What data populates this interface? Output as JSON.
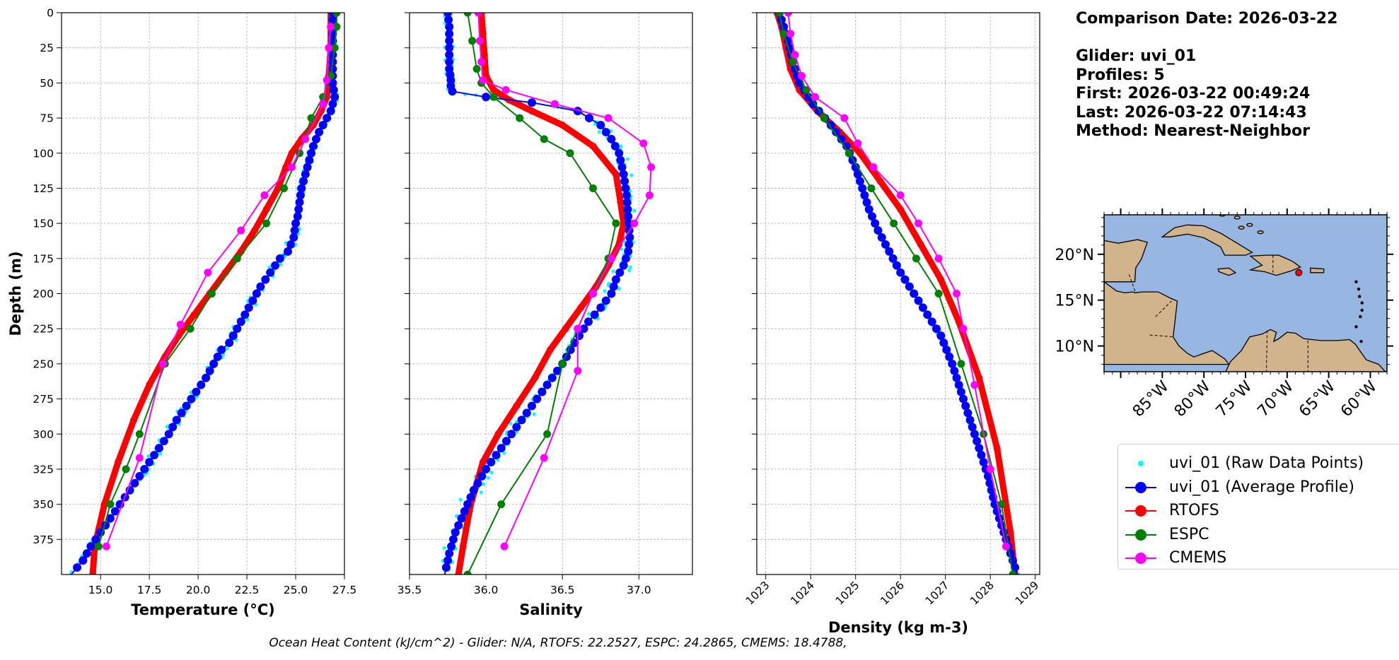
{
  "info": {
    "comparison_date": "Comparison Date: 2026-03-22",
    "glider": "Glider: uvi_01",
    "profiles": "Profiles: 5",
    "first": "First: 2026-03-22 00:49:24",
    "last": "Last: 2026-03-22 07:14:43",
    "method": "Method: Nearest-Neighbor"
  },
  "legend": [
    {
      "label": "uvi_01 (Raw Data Points)",
      "color": "#00ffff",
      "style": "points"
    },
    {
      "label": "uvi_01 (Average Profile)",
      "color": "#0000ff",
      "style": "line-marker"
    },
    {
      "label": "RTOFS",
      "color": "#ff0000",
      "style": "line-marker"
    },
    {
      "label": "ESPC",
      "color": "#008000",
      "style": "line-marker"
    },
    {
      "label": "CMEMS",
      "color": "#ff00ff",
      "style": "line-marker"
    }
  ],
  "footer": "Ocean Heat Content (kJ/cm^2) - Glider: N/A,  RTOFS: 22.2527,  ESPC: 24.2865,  CMEMS: 18.4788,",
  "map": {
    "lat_ticks": [
      "20°N",
      "15°N",
      "10°N"
    ],
    "lon_ticks": [
      "85°W",
      "80°W",
      "75°W",
      "70°W",
      "65°W",
      "60°W"
    ],
    "ocean_color": "#97b6e1",
    "land_color": "#d2b48c",
    "marker": {
      "lon": -68.6,
      "lat": 18.0,
      "color": "#ff0000"
    }
  },
  "chart_data": [
    {
      "type": "line",
      "xlabel": "Temperature (°C)",
      "ylabel": "Depth (m)",
      "xlim": [
        13.0,
        27.5
      ],
      "ylim": [
        400,
        0
      ],
      "xticks": [
        15.0,
        17.5,
        20.0,
        22.5,
        25.0,
        27.5
      ],
      "xtick_labels": [
        "15.0",
        "17.5",
        "20.0",
        "22.5",
        "25.0",
        "27.5"
      ],
      "yticks": [
        0,
        25,
        50,
        75,
        100,
        125,
        150,
        175,
        200,
        225,
        250,
        275,
        300,
        325,
        350,
        375
      ],
      "grid": true,
      "series": [
        {
          "name": "uvi_01 (Average Profile)",
          "color": "#0000ff",
          "x": [
            26.9,
            26.9,
            26.9,
            26.9,
            26.9,
            26.9,
            26.9,
            27.0,
            26.9,
            26.8,
            26.6,
            26.2,
            25.9,
            25.7,
            25.5,
            25.3,
            25.2,
            25.1,
            25.0,
            24.9,
            24.6,
            24.2,
            23.7,
            23.2,
            22.8,
            22.4,
            22.0,
            21.6,
            21.2,
            20.8,
            20.4,
            19.9,
            19.4,
            18.9,
            18.5,
            18.0,
            17.5,
            17.0,
            16.5,
            16.0,
            15.5,
            15.0,
            14.5,
            14.1,
            13.8,
            13.5
          ],
          "y": [
            0,
            5,
            10,
            20,
            30,
            40,
            50,
            60,
            65,
            70,
            75,
            85,
            95,
            105,
            115,
            125,
            135,
            145,
            150,
            160,
            170,
            175,
            185,
            195,
            205,
            215,
            225,
            235,
            240,
            250,
            260,
            270,
            280,
            290,
            300,
            310,
            320,
            330,
            340,
            350,
            360,
            370,
            380,
            390,
            395,
            400
          ]
        },
        {
          "name": "RTOFS",
          "color": "#ff0000",
          "x": [
            26.8,
            26.8,
            26.8,
            26.7,
            26.6,
            26.3,
            25.9,
            25.3,
            24.8,
            24.5,
            24.1,
            23.5,
            22.9,
            22.2,
            21.4,
            20.6,
            19.8,
            19.0,
            18.3,
            17.5,
            16.7,
            15.9,
            15.2,
            14.7,
            14.6
          ],
          "y": [
            0,
            10,
            25,
            45,
            60,
            70,
            80,
            90,
            100,
            110,
            125,
            140,
            155,
            170,
            185,
            200,
            215,
            230,
            245,
            265,
            290,
            320,
            350,
            380,
            400
          ]
        },
        {
          "name": "ESPC",
          "color": "#008000",
          "x": [
            27.1,
            27.1,
            27.0,
            26.8,
            26.4,
            25.8,
            25.2,
            24.4,
            23.5,
            22.0,
            20.7,
            19.6,
            18.3,
            17.0,
            16.3,
            15.5,
            14.9
          ],
          "y": [
            0,
            10,
            25,
            45,
            60,
            75,
            100,
            125,
            150,
            175,
            200,
            225,
            250,
            300,
            325,
            350,
            380
          ]
        },
        {
          "name": "CMEMS",
          "color": "#ff00ff",
          "x": [
            26.8,
            26.7,
            26.6,
            26.4,
            25.5,
            24.8,
            23.4,
            22.2,
            20.5,
            19.1,
            18.2,
            17.0,
            15.3
          ],
          "y": [
            10,
            25,
            48,
            65,
            90,
            110,
            130,
            155,
            185,
            222,
            250,
            317,
            380
          ]
        }
      ]
    },
    {
      "type": "line",
      "xlabel": "Salinity",
      "ylabel": "",
      "xlim": [
        35.5,
        37.35
      ],
      "ylim": [
        400,
        0
      ],
      "xticks": [
        35.5,
        36.0,
        36.5,
        37.0
      ],
      "xtick_labels": [
        "35.5",
        "36.0",
        "36.5",
        "37.0"
      ],
      "grid": true,
      "series": [
        {
          "name": "uvi_01 (Average Profile)",
          "color": "#0000ff",
          "x": [
            35.75,
            35.76,
            35.76,
            35.76,
            35.76,
            35.77,
            35.77,
            35.78,
            36.0,
            36.3,
            36.6,
            36.75,
            36.82,
            36.87,
            36.9,
            36.92,
            36.93,
            36.94,
            36.93,
            36.9,
            36.85,
            36.82,
            36.75,
            36.67,
            36.58,
            36.5,
            36.4,
            36.3,
            36.2,
            36.1,
            36.0,
            35.92,
            35.86,
            35.8,
            35.76,
            35.73
          ],
          "y": [
            0,
            10,
            20,
            30,
            40,
            48,
            52,
            56,
            60,
            64,
            70,
            80,
            90,
            100,
            115,
            130,
            145,
            160,
            170,
            180,
            190,
            200,
            210,
            220,
            235,
            250,
            265,
            280,
            295,
            310,
            325,
            340,
            355,
            370,
            385,
            400
          ]
        },
        {
          "name": "RTOFS",
          "color": "#ff0000",
          "x": [
            35.97,
            35.98,
            35.99,
            36.0,
            36.05,
            36.15,
            36.3,
            36.5,
            36.7,
            36.85,
            36.88,
            36.9,
            36.87,
            36.8,
            36.72,
            36.62,
            36.52,
            36.42,
            36.32,
            36.2,
            36.08,
            35.98,
            35.9,
            35.85,
            35.82
          ],
          "y": [
            0,
            15,
            30,
            45,
            55,
            62,
            70,
            80,
            95,
            115,
            135,
            150,
            165,
            180,
            195,
            210,
            225,
            240,
            260,
            280,
            300,
            320,
            350,
            380,
            400
          ]
        },
        {
          "name": "ESPC",
          "color": "#008000",
          "x": [
            35.88,
            35.91,
            35.94,
            35.97,
            36.05,
            36.22,
            36.38,
            36.55,
            36.7,
            36.85,
            36.8,
            36.7,
            36.6,
            36.5,
            36.4,
            36.1,
            35.88
          ],
          "y": [
            0,
            20,
            40,
            50,
            60,
            75,
            90,
            100,
            125,
            150,
            175,
            200,
            225,
            250,
            300,
            350,
            400
          ]
        },
        {
          "name": "CMEMS",
          "color": "#ff00ff",
          "x": [
            35.95,
            35.96,
            35.97,
            35.98,
            36.13,
            36.45,
            36.8,
            37.03,
            37.08,
            37.07,
            36.97,
            36.82,
            36.7,
            36.6,
            36.6,
            36.38,
            36.12
          ],
          "y": [
            0,
            20,
            35,
            48,
            55,
            65,
            75,
            93,
            110,
            130,
            150,
            175,
            200,
            225,
            255,
            317,
            380
          ]
        }
      ]
    },
    {
      "type": "line",
      "xlabel": "Density (kg m-3)",
      "ylabel": "",
      "xlim": [
        1022.8,
        1029.1
      ],
      "ylim": [
        400,
        0
      ],
      "xticks": [
        1023,
        1024,
        1025,
        1026,
        1027,
        1028,
        1029
      ],
      "xtick_labels": [
        "1023",
        "1024",
        "1025",
        "1026",
        "1027",
        "1028",
        "1029"
      ],
      "grid": true,
      "series": [
        {
          "name": "uvi_01 (Average Profile)",
          "color": "#0000ff",
          "x": [
            1023.3,
            1023.4,
            1023.5,
            1023.6,
            1023.75,
            1024.05,
            1024.45,
            1024.8,
            1025.0,
            1025.15,
            1025.3,
            1025.5,
            1025.75,
            1026.0,
            1026.3,
            1026.6,
            1026.9,
            1027.15,
            1027.35,
            1027.55,
            1027.75,
            1027.95,
            1028.1,
            1028.25,
            1028.4,
            1028.5,
            1028.6
          ],
          "y": [
            0,
            10,
            20,
            35,
            50,
            65,
            80,
            95,
            110,
            125,
            140,
            155,
            170,
            185,
            200,
            215,
            230,
            250,
            270,
            290,
            310,
            330,
            350,
            365,
            380,
            390,
            400
          ]
        },
        {
          "name": "RTOFS",
          "color": "#ff0000",
          "x": [
            1023.25,
            1023.35,
            1023.45,
            1023.55,
            1023.75,
            1024.15,
            1024.65,
            1025.1,
            1025.55,
            1026.0,
            1026.45,
            1026.9,
            1027.3,
            1027.75,
            1028.15,
            1028.45,
            1028.55
          ],
          "y": [
            0,
            10,
            25,
            40,
            55,
            70,
            85,
            100,
            120,
            140,
            165,
            190,
            220,
            260,
            310,
            370,
            400
          ]
        },
        {
          "name": "ESPC",
          "color": "#008000",
          "x": [
            1023.3,
            1023.4,
            1023.6,
            1023.9,
            1024.3,
            1024.85,
            1025.35,
            1025.85,
            1026.35,
            1026.85,
            1027.35,
            1027.85,
            1028.25,
            1028.5
          ],
          "y": [
            0,
            15,
            35,
            55,
            75,
            100,
            125,
            150,
            175,
            200,
            250,
            300,
            350,
            400
          ]
        },
        {
          "name": "CMEMS",
          "color": "#ff00ff",
          "x": [
            1023.5,
            1023.55,
            1023.65,
            1023.8,
            1024.1,
            1024.75,
            1025.05,
            1025.4,
            1026.0,
            1026.4,
            1026.85,
            1027.25,
            1027.4,
            1027.65,
            1028.0,
            1028.35
          ],
          "y": [
            0,
            15,
            30,
            45,
            60,
            75,
            93,
            110,
            130,
            150,
            175,
            200,
            225,
            265,
            325,
            380
          ]
        }
      ]
    }
  ]
}
